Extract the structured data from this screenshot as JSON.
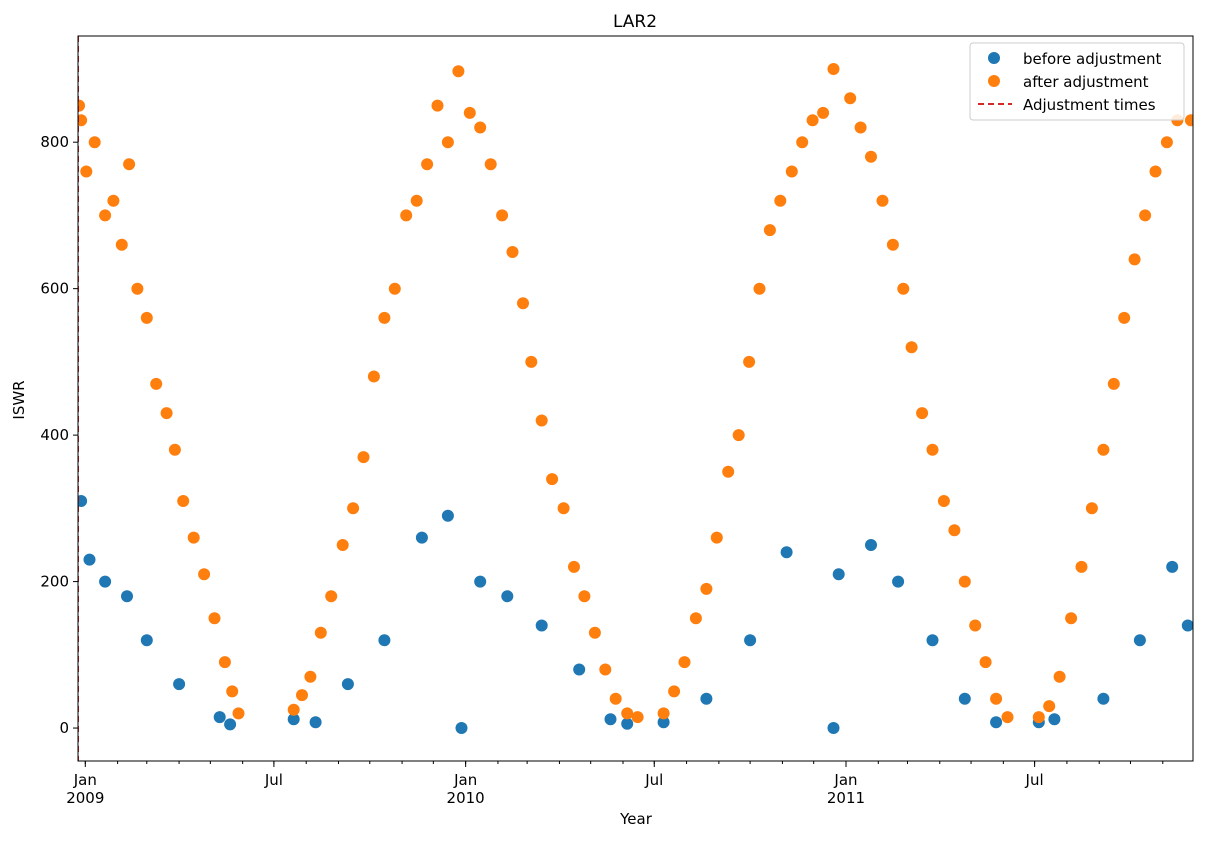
{
  "chart_data": {
    "type": "scatter",
    "title": "LAR2",
    "xlabel": "Year",
    "ylabel": "ISWR",
    "x_range": [
      "2008-12-25",
      "2011-11-30"
    ],
    "ylim": [
      -45,
      945
    ],
    "y_ticks": [
      0,
      200,
      400,
      600,
      800
    ],
    "x_ticks": [
      {
        "date": "2009-01-01",
        "label": "Jan",
        "year_label": "2009"
      },
      {
        "date": "2009-07-01",
        "label": "Jul",
        "year_label": ""
      },
      {
        "date": "2010-01-01",
        "label": "Jan",
        "year_label": "2010"
      },
      {
        "date": "2010-07-01",
        "label": "Jul",
        "year_label": ""
      },
      {
        "date": "2011-01-01",
        "label": "Jan",
        "year_label": "2011"
      },
      {
        "date": "2011-07-01",
        "label": "Jul",
        "year_label": ""
      }
    ],
    "grid": false,
    "legend_position": "top-right",
    "series": [
      {
        "name": "before adjustment",
        "color": "#1f77b4",
        "marker": "circle",
        "points": [
          [
            "2008-12-28",
            310
          ],
          [
            "2009-01-05",
            230
          ],
          [
            "2009-01-20",
            200
          ],
          [
            "2009-02-10",
            180
          ],
          [
            "2009-03-01",
            120
          ],
          [
            "2009-04-01",
            60
          ],
          [
            "2009-05-10",
            15
          ],
          [
            "2009-05-20",
            5
          ],
          [
            "2009-07-20",
            12
          ],
          [
            "2009-08-10",
            8
          ],
          [
            "2009-09-10",
            60
          ],
          [
            "2009-10-15",
            120
          ],
          [
            "2009-11-20",
            260
          ],
          [
            "2009-12-15",
            290
          ],
          [
            "2009-12-28",
            0
          ],
          [
            "2010-01-15",
            200
          ],
          [
            "2010-02-10",
            180
          ],
          [
            "2010-03-15",
            140
          ],
          [
            "2010-04-20",
            80
          ],
          [
            "2010-05-20",
            12
          ],
          [
            "2010-06-05",
            6
          ],
          [
            "2010-07-10",
            8
          ],
          [
            "2010-08-20",
            40
          ],
          [
            "2010-10-01",
            120
          ],
          [
            "2010-11-05",
            240
          ],
          [
            "2010-12-20",
            0
          ],
          [
            "2010-12-25",
            210
          ],
          [
            "2011-01-25",
            250
          ],
          [
            "2011-02-20",
            200
          ],
          [
            "2011-03-25",
            120
          ],
          [
            "2011-04-25",
            40
          ],
          [
            "2011-05-25",
            8
          ],
          [
            "2011-07-05",
            8
          ],
          [
            "2011-07-20",
            12
          ],
          [
            "2011-09-05",
            40
          ],
          [
            "2011-10-10",
            120
          ],
          [
            "2011-11-10",
            220
          ],
          [
            "2011-11-25",
            140
          ]
        ]
      },
      {
        "name": "after adjustment",
        "color": "#ff7f0e",
        "marker": "circle",
        "points": [
          [
            "2008-12-26",
            850
          ],
          [
            "2008-12-28",
            830
          ],
          [
            "2009-01-02",
            760
          ],
          [
            "2009-01-10",
            800
          ],
          [
            "2009-01-20",
            700
          ],
          [
            "2009-01-28",
            720
          ],
          [
            "2009-02-05",
            660
          ],
          [
            "2009-02-12",
            770
          ],
          [
            "2009-02-20",
            600
          ],
          [
            "2009-03-01",
            560
          ],
          [
            "2009-03-10",
            470
          ],
          [
            "2009-03-20",
            430
          ],
          [
            "2009-03-28",
            380
          ],
          [
            "2009-04-05",
            310
          ],
          [
            "2009-04-15",
            260
          ],
          [
            "2009-04-25",
            210
          ],
          [
            "2009-05-05",
            150
          ],
          [
            "2009-05-15",
            90
          ],
          [
            "2009-05-22",
            50
          ],
          [
            "2009-05-28",
            20
          ],
          [
            "2009-07-20",
            25
          ],
          [
            "2009-07-28",
            45
          ],
          [
            "2009-08-05",
            70
          ],
          [
            "2009-08-15",
            130
          ],
          [
            "2009-08-25",
            180
          ],
          [
            "2009-09-05",
            250
          ],
          [
            "2009-09-15",
            300
          ],
          [
            "2009-09-25",
            370
          ],
          [
            "2009-10-05",
            480
          ],
          [
            "2009-10-15",
            560
          ],
          [
            "2009-10-25",
            600
          ],
          [
            "2009-11-05",
            700
          ],
          [
            "2009-11-15",
            720
          ],
          [
            "2009-11-25",
            770
          ],
          [
            "2009-12-05",
            850
          ],
          [
            "2009-12-15",
            800
          ],
          [
            "2009-12-25",
            897
          ],
          [
            "2010-01-05",
            840
          ],
          [
            "2010-01-15",
            820
          ],
          [
            "2010-01-25",
            770
          ],
          [
            "2010-02-05",
            700
          ],
          [
            "2010-02-15",
            650
          ],
          [
            "2010-02-25",
            580
          ],
          [
            "2010-03-05",
            500
          ],
          [
            "2010-03-15",
            420
          ],
          [
            "2010-03-25",
            340
          ],
          [
            "2010-04-05",
            300
          ],
          [
            "2010-04-15",
            220
          ],
          [
            "2010-04-25",
            180
          ],
          [
            "2010-05-05",
            130
          ],
          [
            "2010-05-15",
            80
          ],
          [
            "2010-05-25",
            40
          ],
          [
            "2010-06-05",
            20
          ],
          [
            "2010-06-15",
            15
          ],
          [
            "2010-07-10",
            20
          ],
          [
            "2010-07-20",
            50
          ],
          [
            "2010-07-30",
            90
          ],
          [
            "2010-08-10",
            150
          ],
          [
            "2010-08-20",
            190
          ],
          [
            "2010-08-30",
            260
          ],
          [
            "2010-09-10",
            350
          ],
          [
            "2010-09-20",
            400
          ],
          [
            "2010-09-30",
            500
          ],
          [
            "2010-10-10",
            600
          ],
          [
            "2010-10-20",
            680
          ],
          [
            "2010-10-30",
            720
          ],
          [
            "2010-11-10",
            760
          ],
          [
            "2010-11-20",
            800
          ],
          [
            "2010-11-30",
            830
          ],
          [
            "2010-12-10",
            840
          ],
          [
            "2010-12-20",
            900
          ],
          [
            "2011-01-05",
            860
          ],
          [
            "2011-01-15",
            820
          ],
          [
            "2011-01-25",
            780
          ],
          [
            "2011-02-05",
            720
          ],
          [
            "2011-02-15",
            660
          ],
          [
            "2011-02-25",
            600
          ],
          [
            "2011-03-05",
            520
          ],
          [
            "2011-03-15",
            430
          ],
          [
            "2011-03-25",
            380
          ],
          [
            "2011-04-05",
            310
          ],
          [
            "2011-04-15",
            270
          ],
          [
            "2011-04-25",
            200
          ],
          [
            "2011-05-05",
            140
          ],
          [
            "2011-05-15",
            90
          ],
          [
            "2011-05-25",
            40
          ],
          [
            "2011-06-05",
            15
          ],
          [
            "2011-07-05",
            15
          ],
          [
            "2011-07-15",
            30
          ],
          [
            "2011-07-25",
            70
          ],
          [
            "2011-08-05",
            150
          ],
          [
            "2011-08-15",
            220
          ],
          [
            "2011-08-25",
            300
          ],
          [
            "2011-09-05",
            380
          ],
          [
            "2011-09-15",
            470
          ],
          [
            "2011-09-25",
            560
          ],
          [
            "2011-10-05",
            640
          ],
          [
            "2011-10-15",
            700
          ],
          [
            "2011-10-25",
            760
          ],
          [
            "2011-11-05",
            800
          ],
          [
            "2011-11-15",
            830
          ],
          [
            "2011-11-28",
            830
          ]
        ]
      }
    ],
    "adjustment_lines": {
      "name": "Adjustment times",
      "color": "#d62728",
      "style": "dashed",
      "dates": [
        "2008-12-25"
      ]
    }
  }
}
